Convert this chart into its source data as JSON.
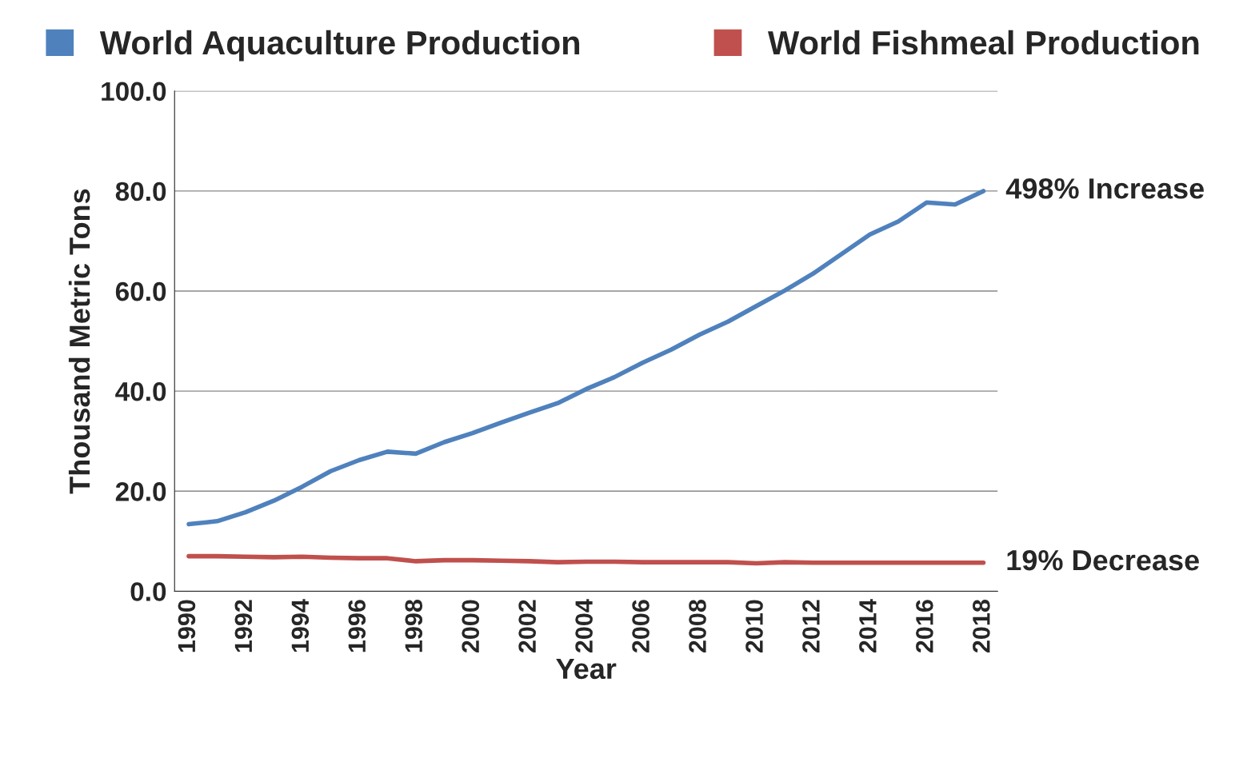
{
  "chart_data": {
    "type": "line",
    "xlabel": "Year",
    "ylabel": "Thousand Metric Tons",
    "x": [
      1990,
      1991,
      1992,
      1993,
      1994,
      1995,
      1996,
      1997,
      1998,
      1999,
      2000,
      2001,
      2002,
      2003,
      2004,
      2005,
      2006,
      2007,
      2008,
      2009,
      2010,
      2011,
      2012,
      2013,
      2014,
      2015,
      2016,
      2017,
      2018
    ],
    "series": [
      {
        "name": "World Aquaculture Production",
        "color": "#4f81bd",
        "values": [
          13.4,
          14.0,
          15.8,
          18.1,
          20.9,
          24.0,
          26.2,
          27.9,
          27.5,
          29.8,
          31.6,
          33.7,
          35.7,
          37.6,
          40.4,
          42.8,
          45.7,
          48.3,
          51.3,
          53.9,
          57.0,
          60.1,
          63.5,
          67.4,
          71.3,
          73.9,
          77.7,
          77.3,
          80.0
        ]
      },
      {
        "name": "World Fishmeal Production",
        "color": "#c0504d",
        "values": [
          7.0,
          7.0,
          6.9,
          6.8,
          6.9,
          6.7,
          6.6,
          6.6,
          6.0,
          6.2,
          6.2,
          6.1,
          6.0,
          5.8,
          5.9,
          5.9,
          5.8,
          5.8,
          5.8,
          5.8,
          5.6,
          5.8,
          5.7,
          5.7,
          5.7,
          5.7,
          5.7,
          5.7,
          5.7
        ]
      }
    ],
    "xlim": [
      1989.5,
      2018.5
    ],
    "xticks": [
      1990,
      1992,
      1994,
      1996,
      1998,
      2000,
      2002,
      2004,
      2006,
      2008,
      2010,
      2012,
      2014,
      2016,
      2018
    ],
    "ylim": [
      0,
      100
    ],
    "yticks": [
      {
        "value": 0,
        "label": "0.0"
      },
      {
        "value": 20,
        "label": "20.0"
      },
      {
        "value": 40,
        "label": "40.0"
      },
      {
        "value": 60,
        "label": "60.0"
      },
      {
        "value": 80,
        "label": "80.0"
      },
      {
        "value": 100,
        "label": "100.0"
      }
    ],
    "annotations": [
      {
        "text": "498% Increase",
        "x": 2018,
        "y": 80.0
      },
      {
        "text": "19% Decrease",
        "x": 2018,
        "y": 5.7
      }
    ],
    "grid": "y",
    "legend": "top",
    "marker": "none",
    "line_style": "solid"
  }
}
